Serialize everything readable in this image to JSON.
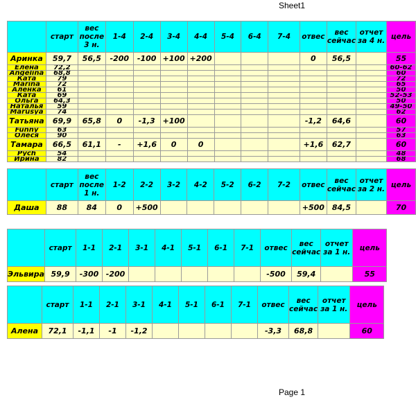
{
  "page": {
    "sheet_title": "Sheet1",
    "footer": "Page 1"
  },
  "colors": {
    "header_bg": "#00ffff",
    "goal_bg": "#ff00ff",
    "name_bg": "#ffff00",
    "cell_bg": "#ffffcc",
    "grid": "#9a9a9a"
  },
  "tables": [
    {
      "id": "week4",
      "columns": [
        "",
        "старт",
        "вес после 3 н.",
        "1-4",
        "2-4",
        "3-4",
        "4-4",
        "5-4",
        "6-4",
        "7-4",
        "отвес",
        "вес сейчас",
        "отчет за 4 н.",
        "цель"
      ],
      "rows": [
        {
          "name": "Аринка",
          "thin": false,
          "cells": [
            "59,7",
            "56,5",
            "-200",
            "-100",
            "+100",
            "+200",
            "",
            "",
            "",
            "0",
            "56,5",
            ""
          ],
          "goal": "55"
        },
        {
          "name": "Елена",
          "thin": true,
          "cells": [
            "72,2",
            "",
            "",
            "",
            "",
            "",
            "",
            "",
            "",
            "",
            "",
            ""
          ],
          "goal": "60-62"
        },
        {
          "name": "Angelina",
          "thin": true,
          "cells": [
            "68,8",
            "",
            "",
            "",
            "",
            "",
            "",
            "",
            "",
            "",
            "",
            ""
          ],
          "goal": "60"
        },
        {
          "name": "Ката",
          "thin": true,
          "cells": [
            "79",
            "",
            "",
            "",
            "",
            "",
            "",
            "",
            "",
            "",
            "",
            ""
          ],
          "goal": "72"
        },
        {
          "name": "Marina",
          "thin": true,
          "cells": [
            "72",
            "",
            "",
            "",
            "",
            "",
            "",
            "",
            "",
            "",
            "",
            ""
          ],
          "goal": "65"
        },
        {
          "name": "Аленка",
          "thin": true,
          "cells": [
            "61",
            "",
            "",
            "",
            "",
            "",
            "",
            "",
            "",
            "",
            "",
            ""
          ],
          "goal": "50"
        },
        {
          "name": "Ката",
          "thin": true,
          "cells": [
            "69",
            "",
            "",
            "",
            "",
            "",
            "",
            "",
            "",
            "",
            "",
            ""
          ],
          "goal": "52-53"
        },
        {
          "name": "Ольга",
          "thin": true,
          "cells": [
            "64,3",
            "",
            "",
            "",
            "",
            "",
            "",
            "",
            "",
            "",
            "",
            ""
          ],
          "goal": "50"
        },
        {
          "name": "Наталья",
          "thin": true,
          "cells": [
            "59",
            "",
            "",
            "",
            "",
            "",
            "",
            "",
            "",
            "",
            "",
            ""
          ],
          "goal": "49-50"
        },
        {
          "name": "Marusya",
          "thin": true,
          "cells": [
            "74",
            "",
            "",
            "",
            "",
            "",
            "",
            "",
            "",
            "",
            "",
            ""
          ],
          "goal": "62"
        },
        {
          "name": "Татьяна",
          "thin": false,
          "cells": [
            "69,9",
            "65,8",
            "0",
            "-1,3",
            "+100",
            "",
            "",
            "",
            "",
            "-1,2",
            "64,6",
            ""
          ],
          "goal": "60"
        },
        {
          "name": "Funny",
          "thin": true,
          "cells": [
            "63",
            "",
            "",
            "",
            "",
            "",
            "",
            "",
            "",
            "",
            "",
            ""
          ],
          "goal": "57"
        },
        {
          "name": "Олеся",
          "thin": true,
          "cells": [
            "90",
            "",
            "",
            "",
            "",
            "",
            "",
            "",
            "",
            "",
            "",
            ""
          ],
          "goal": "63"
        },
        {
          "name": "Тамара",
          "thin": false,
          "cells": [
            "66,5",
            "61,1",
            "-",
            "+1,6",
            "0",
            "0",
            "",
            "",
            "",
            "+1,6",
            "62,7",
            ""
          ],
          "goal": "60"
        },
        {
          "name": "Pych",
          "thin": true,
          "cells": [
            "54",
            "",
            "",
            "",
            "",
            "",
            "",
            "",
            "",
            "",
            "",
            ""
          ],
          "goal": "48"
        },
        {
          "name": "Ирина",
          "thin": true,
          "cells": [
            "82",
            "",
            "",
            "",
            "",
            "",
            "",
            "",
            "",
            "",
            "",
            ""
          ],
          "goal": "68"
        }
      ]
    },
    {
      "id": "week2",
      "columns": [
        "",
        "старт",
        "вес после 1 н.",
        "1-2",
        "2-2",
        "3-2",
        "4-2",
        "5-2",
        "6-2",
        "7-2",
        "отвес",
        "вес сейчас",
        "отчет за 2 н.",
        "цель"
      ],
      "rows": [
        {
          "name": "Даша",
          "thin": false,
          "cells": [
            "88",
            "84",
            "0",
            "+500",
            "",
            "",
            "",
            "",
            "",
            "+500",
            "84,5",
            ""
          ],
          "goal": "70"
        }
      ]
    },
    {
      "id": "week1a",
      "columns": [
        "",
        "старт",
        "1-1",
        "2-1",
        "3-1",
        "4-1",
        "5-1",
        "6-1",
        "7-1",
        "отвес",
        "вес сейчас",
        "отчет за 1 н.",
        "цель"
      ],
      "rows": [
        {
          "name": "Эльвира",
          "thin": false,
          "cells": [
            "59,9",
            "-300",
            "-200",
            "",
            "",
            "",
            "",
            "",
            "-500",
            "59,4",
            ""
          ],
          "goal": "55"
        }
      ]
    },
    {
      "id": "week1b",
      "columns": [
        "",
        "старт",
        "1-1",
        "2-1",
        "3-1",
        "4-1",
        "5-1",
        "6-1",
        "7-1",
        "отвес",
        "вес сейчас",
        "отчет за 1 н.",
        "цель"
      ],
      "rows": [
        {
          "name": "Алена",
          "thin": false,
          "cells": [
            "72,1",
            "-1,1",
            "-1",
            "-1,2",
            "",
            "",
            "",
            "",
            "-3,3",
            "68,8",
            ""
          ],
          "goal": "60"
        }
      ]
    }
  ]
}
